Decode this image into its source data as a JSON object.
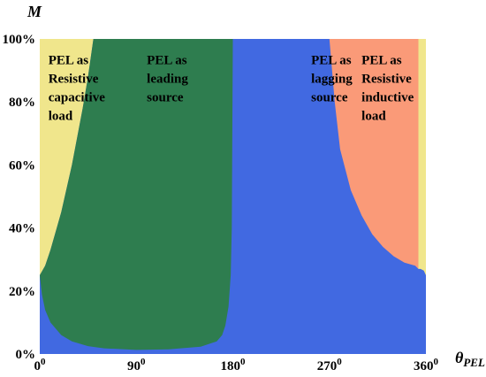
{
  "chart_data": {
    "type": "area",
    "y_axis_title": "M",
    "x_axis_title": {
      "main": "θ",
      "subscript": "PEL"
    },
    "x_range": [
      0,
      360
    ],
    "y_range": [
      0,
      100
    ],
    "x_ticks": [
      {
        "value": 0,
        "base": "0",
        "sup": "0"
      },
      {
        "value": 90,
        "base": "90",
        "sup": "0"
      },
      {
        "value": 180,
        "base": "180",
        "sup": "0"
      },
      {
        "value": 270,
        "base": "270",
        "sup": "0"
      },
      {
        "value": 360,
        "base": "360",
        "sup": "0"
      }
    ],
    "y_ticks": [
      {
        "value": 0,
        "label": "0%"
      },
      {
        "value": 20,
        "label": "20%"
      },
      {
        "value": 40,
        "label": "40%"
      },
      {
        "value": 60,
        "label": "60%"
      },
      {
        "value": 80,
        "label": "80%"
      },
      {
        "value": 100,
        "label": "100%"
      }
    ],
    "regions": [
      {
        "name": "resistive-capacitive",
        "color": "#F0E68C",
        "lines": [
          "PEL as",
          "Resistive",
          "capacitive",
          "load"
        ]
      },
      {
        "name": "leading-source",
        "color": "#2E7D4F",
        "lines": [
          "PEL as",
          "leading",
          "source"
        ]
      },
      {
        "name": "lagging-source",
        "color": "#4169E1",
        "lines": [
          "PEL as",
          "lagging",
          "source"
        ]
      },
      {
        "name": "resistive-inductive",
        "color": "#FA9A78",
        "lines": [
          "PEL as",
          "Resistive",
          "inductive",
          "load"
        ]
      }
    ],
    "boundary_curves": {
      "leading_source_lower": [
        [
          0,
          25
        ],
        [
          2,
          19
        ],
        [
          5,
          14
        ],
        [
          10,
          10
        ],
        [
          20,
          6
        ],
        [
          30,
          4
        ],
        [
          45,
          2.5
        ],
        [
          60,
          1.8
        ],
        [
          90,
          1.3
        ],
        [
          120,
          1.5
        ],
        [
          150,
          2.3
        ],
        [
          165,
          4
        ],
        [
          170,
          6
        ],
        [
          173,
          9
        ],
        [
          176,
          15
        ],
        [
          178,
          25
        ],
        [
          179,
          40
        ],
        [
          180,
          100
        ]
      ],
      "leading_source_upper_left": [
        [
          0,
          25
        ],
        [
          5,
          28
        ],
        [
          10,
          33
        ],
        [
          20,
          45
        ],
        [
          30,
          60
        ],
        [
          40,
          78
        ],
        [
          45,
          88
        ],
        [
          50,
          100
        ]
      ],
      "resistive_inductive_boundary": [
        [
          270,
          100
        ],
        [
          275,
          80
        ],
        [
          280,
          65
        ],
        [
          290,
          52
        ],
        [
          300,
          44
        ],
        [
          310,
          38
        ],
        [
          320,
          34
        ],
        [
          330,
          31
        ],
        [
          340,
          29
        ],
        [
          350,
          28
        ],
        [
          353,
          27
        ],
        [
          353,
          100
        ]
      ],
      "right_edge_bump": [
        [
          353,
          27
        ],
        [
          355,
          27
        ],
        [
          358,
          26.5
        ],
        [
          360,
          25
        ]
      ]
    },
    "grid": false,
    "legend": "none"
  }
}
